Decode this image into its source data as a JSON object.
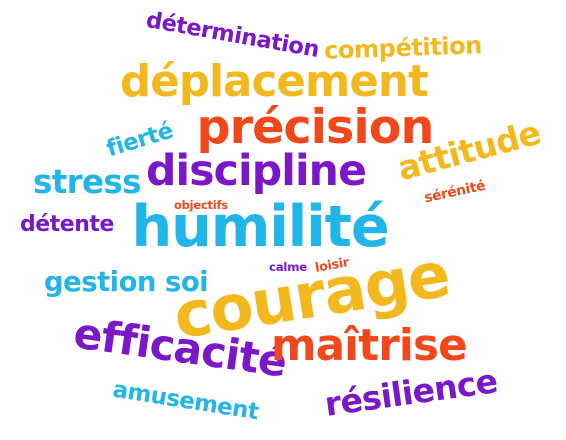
{
  "colors": {
    "purple": "#7b16c9",
    "orange": "#f4b81f",
    "red": "#f2471a",
    "blue": "#22b5e8",
    "background": "#ffffff"
  },
  "words": [
    {
      "text": "détermination",
      "color": "purple"
    },
    {
      "text": "compétition",
      "color": "orange"
    },
    {
      "text": "déplacement",
      "color": "orange"
    },
    {
      "text": "précision",
      "color": "red"
    },
    {
      "text": "fierté",
      "color": "blue"
    },
    {
      "text": "attitude",
      "color": "orange"
    },
    {
      "text": "discipline",
      "color": "purple"
    },
    {
      "text": "stress",
      "color": "blue"
    },
    {
      "text": "sérénité",
      "color": "red"
    },
    {
      "text": "objectifs",
      "color": "red"
    },
    {
      "text": "détente",
      "color": "purple"
    },
    {
      "text": "humilité",
      "color": "blue"
    },
    {
      "text": "calme",
      "color": "purple"
    },
    {
      "text": "loisir",
      "color": "red"
    },
    {
      "text": "gestion soi",
      "color": "blue"
    },
    {
      "text": "courage",
      "color": "orange"
    },
    {
      "text": "efficacité",
      "color": "purple"
    },
    {
      "text": "maîtrise",
      "color": "red"
    },
    {
      "text": "résilience",
      "color": "purple"
    },
    {
      "text": "amusement",
      "color": "blue"
    }
  ]
}
